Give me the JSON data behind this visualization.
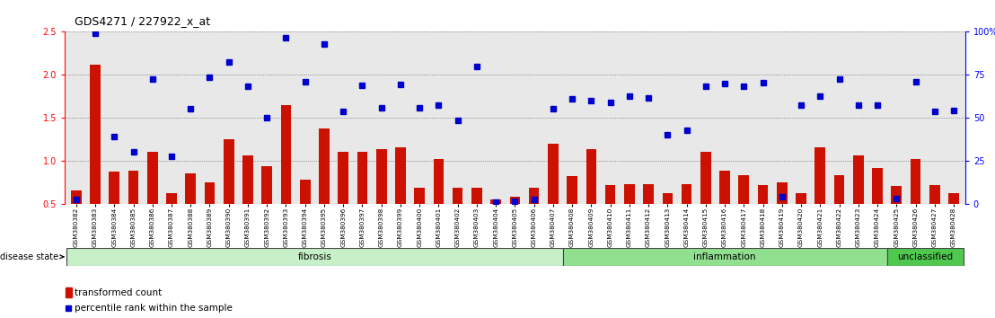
{
  "title": "GDS4271 / 227922_x_at",
  "samples": [
    "GSM380382",
    "GSM380383",
    "GSM380384",
    "GSM380385",
    "GSM380386",
    "GSM380387",
    "GSM380388",
    "GSM380389",
    "GSM380390",
    "GSM380391",
    "GSM380392",
    "GSM380393",
    "GSM380394",
    "GSM380395",
    "GSM380396",
    "GSM380397",
    "GSM380398",
    "GSM380399",
    "GSM380400",
    "GSM380401",
    "GSM380402",
    "GSM380403",
    "GSM380404",
    "GSM380405",
    "GSM380406",
    "GSM380407",
    "GSM380408",
    "GSM380409",
    "GSM380410",
    "GSM380411",
    "GSM380412",
    "GSM380413",
    "GSM380414",
    "GSM380415",
    "GSM380416",
    "GSM380417",
    "GSM380418",
    "GSM380419",
    "GSM380420",
    "GSM380421",
    "GSM380422",
    "GSM380423",
    "GSM380424",
    "GSM380425",
    "GSM380426",
    "GSM380427",
    "GSM380428"
  ],
  "red_bars": [
    0.65,
    2.12,
    0.87,
    0.88,
    1.1,
    0.62,
    0.85,
    0.75,
    1.25,
    1.06,
    0.93,
    1.65,
    0.78,
    1.37,
    1.1,
    1.1,
    1.13,
    1.15,
    0.68,
    1.02,
    0.68,
    0.68,
    0.55,
    0.58,
    0.68,
    1.2,
    0.82,
    1.13,
    0.72,
    0.73,
    0.73,
    0.62,
    0.73,
    1.1,
    0.88,
    0.83,
    0.72,
    0.75,
    0.62,
    1.15,
    0.83,
    1.06,
    0.91,
    0.7,
    1.02,
    0.72,
    0.62
  ],
  "blue_squares": [
    0.55,
    2.48,
    1.28,
    1.1,
    1.95,
    1.05,
    1.6,
    1.97,
    2.15,
    1.87,
    1.5,
    2.43,
    1.92,
    2.36,
    1.57,
    1.88,
    1.62,
    1.89,
    1.62,
    1.65,
    1.47,
    2.1,
    0.52,
    0.53,
    0.55,
    1.6,
    1.72,
    1.7,
    1.68,
    1.75,
    1.73,
    1.3,
    1.35,
    1.87,
    1.9,
    1.87,
    1.91,
    0.58,
    1.65,
    1.75,
    1.95,
    1.65,
    1.65,
    0.56,
    1.92,
    1.57,
    1.58
  ],
  "groups": [
    {
      "label": "fibrosis",
      "start": 0,
      "end": 25,
      "color": "#c8f0c8"
    },
    {
      "label": "inflammation",
      "start": 26,
      "end": 42,
      "color": "#90e090"
    },
    {
      "label": "unclassified",
      "start": 43,
      "end": 46,
      "color": "#50c850"
    }
  ],
  "ylim_left": [
    0.5,
    2.5
  ],
  "ylim_right": [
    0,
    100
  ],
  "yticks_left": [
    0.5,
    1.0,
    1.5,
    2.0,
    2.5
  ],
  "ytick_labels_left": [
    "0.5",
    "1.0",
    "1.5",
    "2.0",
    "2.5"
  ],
  "yticks_right": [
    0,
    25,
    50,
    75,
    100
  ],
  "ytick_labels_right": [
    "0",
    "25",
    "50",
    "75",
    "100%"
  ],
  "bar_color": "#cc1100",
  "square_color": "#0000cc",
  "plot_bg": "#e8e8e8",
  "bar_width": 0.55
}
